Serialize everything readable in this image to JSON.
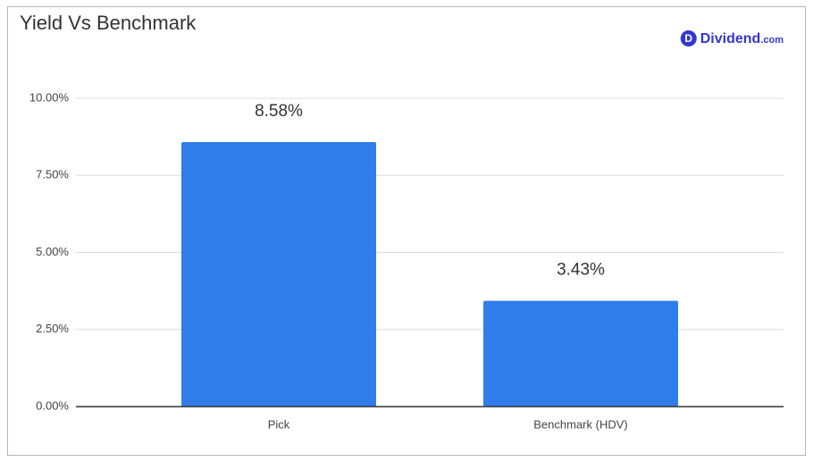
{
  "chart_data": {
    "type": "bar",
    "title": "Yield Vs Benchmark",
    "logo": {
      "icon": "D",
      "name": "Dividend",
      "suffix": ".com"
    },
    "categories": [
      "Pick",
      "Benchmark (HDV)"
    ],
    "values": [
      8.58,
      3.43
    ],
    "value_labels": [
      "8.58%",
      "3.43%"
    ],
    "color": "#307deb",
    "ylim": [
      0,
      10
    ],
    "yticks": [
      {
        "value": 0,
        "label": "0.00%"
      },
      {
        "value": 2.5,
        "label": "2.50%"
      },
      {
        "value": 5,
        "label": "5.00%"
      },
      {
        "value": 7.5,
        "label": "7.50%"
      },
      {
        "value": 10,
        "label": "10.00%"
      }
    ],
    "grid": true
  }
}
